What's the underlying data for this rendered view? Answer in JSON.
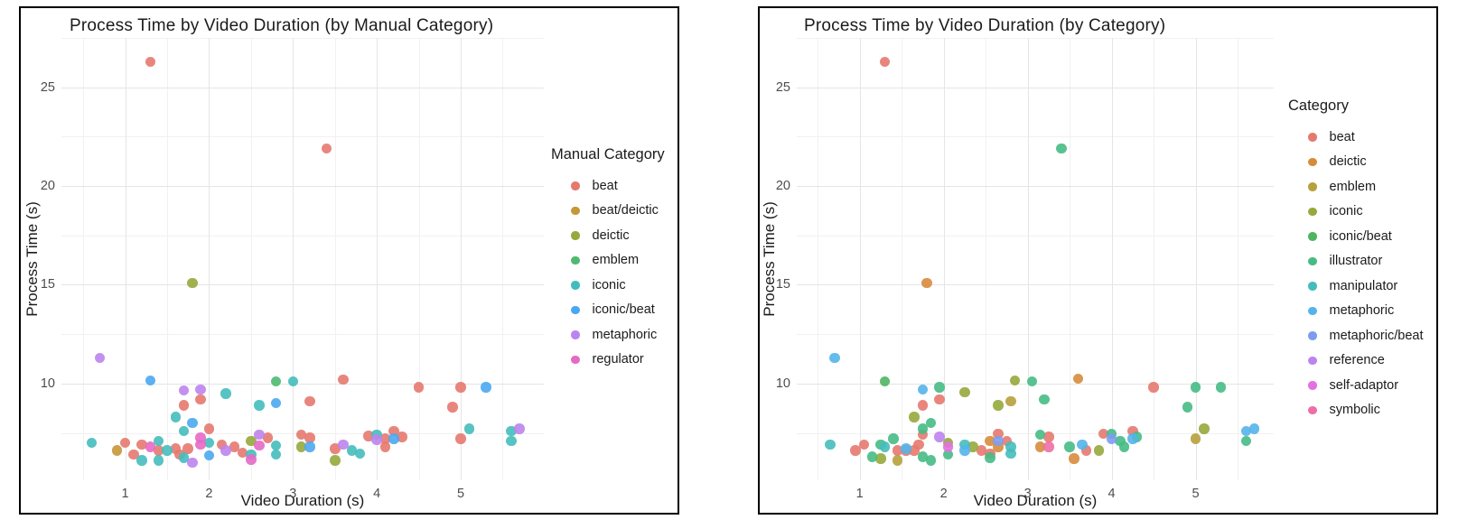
{
  "page": {
    "background": "#ffffff",
    "panel_border_color": "#000000",
    "grid_major_color": "#e5e5e5",
    "grid_minor_color": "#f1f1f1",
    "tick_text_color": "#4d4d4d",
    "text_color": "#1b1b1b"
  },
  "chart_data": [
    {
      "type": "scatter",
      "title": "Process Time by Video Duration (by Manual Category)",
      "xlabel": "Video Duration (s)",
      "ylabel": "Process Time (s)",
      "legend_title": "Manual Category",
      "legend_position": "right",
      "grid": true,
      "xlim": [
        0.24,
        5.99
      ],
      "ylim": [
        5.1,
        27.5
      ],
      "x_ticks": [
        1,
        2,
        3,
        4,
        5
      ],
      "y_ticks": [
        10,
        15,
        20,
        25
      ],
      "x_minor": [
        0.5,
        1.5,
        2.5,
        3.5,
        4.5,
        5.5
      ],
      "y_minor": [
        7.5,
        12.5,
        17.5,
        22.5,
        27.5
      ],
      "categories": [
        {
          "name": "beat",
          "color": "#E5796F"
        },
        {
          "name": "beat/deictic",
          "color": "#C69738"
        },
        {
          "name": "deictic",
          "color": "#96A93C"
        },
        {
          "name": "emblem",
          "color": "#4FBA71"
        },
        {
          "name": "iconic",
          "color": "#45BCBC"
        },
        {
          "name": "iconic/beat",
          "color": "#4BA8F0"
        },
        {
          "name": "metaphoric",
          "color": "#BC84EE"
        },
        {
          "name": "regulator",
          "color": "#E669C6"
        }
      ],
      "points": [
        [
          1.3,
          26.3,
          "beat"
        ],
        [
          3.4,
          21.9,
          "beat"
        ],
        [
          1.0,
          7.0,
          "beat"
        ],
        [
          1.1,
          6.4,
          "beat"
        ],
        [
          1.2,
          6.9,
          "beat"
        ],
        [
          1.4,
          6.6,
          "beat"
        ],
        [
          1.6,
          6.7,
          "beat"
        ],
        [
          1.65,
          6.4,
          "beat"
        ],
        [
          1.7,
          8.9,
          "beat"
        ],
        [
          1.75,
          6.7,
          "beat"
        ],
        [
          1.9,
          9.2,
          "beat"
        ],
        [
          2.0,
          7.7,
          "beat"
        ],
        [
          2.15,
          6.9,
          "beat"
        ],
        [
          2.3,
          6.8,
          "beat"
        ],
        [
          2.4,
          6.5,
          "beat"
        ],
        [
          2.7,
          7.25,
          "beat"
        ],
        [
          3.1,
          7.4,
          "beat"
        ],
        [
          3.2,
          9.1,
          "beat"
        ],
        [
          3.2,
          7.25,
          "beat"
        ],
        [
          3.5,
          6.7,
          "beat"
        ],
        [
          3.6,
          10.2,
          "beat"
        ],
        [
          3.9,
          7.35,
          "beat"
        ],
        [
          4.1,
          7.2,
          "beat"
        ],
        [
          4.1,
          6.8,
          "beat"
        ],
        [
          4.2,
          7.6,
          "beat"
        ],
        [
          4.3,
          7.3,
          "beat"
        ],
        [
          4.5,
          9.8,
          "beat"
        ],
        [
          4.9,
          8.8,
          "beat"
        ],
        [
          5.0,
          9.8,
          "beat"
        ],
        [
          5.0,
          7.2,
          "beat"
        ],
        [
          0.9,
          6.6,
          "beat/deictic"
        ],
        [
          1.8,
          15.1,
          "deictic"
        ],
        [
          2.5,
          7.1,
          "deictic"
        ],
        [
          3.1,
          6.8,
          "deictic"
        ],
        [
          3.5,
          6.1,
          "deictic"
        ],
        [
          2.8,
          10.1,
          "emblem"
        ],
        [
          0.6,
          7.0,
          "iconic"
        ],
        [
          1.2,
          6.1,
          "iconic"
        ],
        [
          1.4,
          7.1,
          "iconic"
        ],
        [
          1.4,
          6.1,
          "iconic"
        ],
        [
          1.5,
          6.6,
          "iconic"
        ],
        [
          1.6,
          8.3,
          "iconic"
        ],
        [
          1.7,
          7.6,
          "iconic"
        ],
        [
          1.7,
          6.25,
          "iconic"
        ],
        [
          2.0,
          7.0,
          "iconic"
        ],
        [
          2.2,
          9.5,
          "iconic"
        ],
        [
          2.5,
          6.4,
          "iconic"
        ],
        [
          2.6,
          8.9,
          "iconic"
        ],
        [
          2.8,
          6.85,
          "iconic"
        ],
        [
          2.8,
          6.4,
          "iconic"
        ],
        [
          3.0,
          10.1,
          "iconic"
        ],
        [
          3.7,
          6.6,
          "iconic"
        ],
        [
          3.8,
          6.45,
          "iconic"
        ],
        [
          4.0,
          7.4,
          "iconic"
        ],
        [
          5.1,
          7.7,
          "iconic"
        ],
        [
          5.6,
          7.6,
          "iconic"
        ],
        [
          5.6,
          7.1,
          "iconic"
        ],
        [
          1.3,
          10.15,
          "iconic/beat"
        ],
        [
          1.8,
          8.0,
          "iconic/beat"
        ],
        [
          2.0,
          6.35,
          "iconic/beat"
        ],
        [
          2.8,
          9.0,
          "iconic/beat"
        ],
        [
          3.2,
          6.8,
          "iconic/beat"
        ],
        [
          4.2,
          7.2,
          "iconic/beat"
        ],
        [
          5.3,
          9.8,
          "iconic/beat"
        ],
        [
          0.7,
          11.3,
          "metaphoric"
        ],
        [
          1.7,
          9.65,
          "metaphoric"
        ],
        [
          1.9,
          9.7,
          "metaphoric"
        ],
        [
          1.8,
          6.0,
          "metaphoric"
        ],
        [
          2.2,
          6.6,
          "metaphoric"
        ],
        [
          2.6,
          7.4,
          "metaphoric"
        ],
        [
          3.6,
          6.9,
          "metaphoric"
        ],
        [
          4.0,
          7.15,
          "metaphoric"
        ],
        [
          5.7,
          7.7,
          "metaphoric"
        ],
        [
          1.3,
          6.8,
          "regulator"
        ],
        [
          1.9,
          7.25,
          "regulator"
        ],
        [
          1.9,
          6.9,
          "regulator"
        ],
        [
          2.5,
          6.15,
          "regulator"
        ],
        [
          2.6,
          6.85,
          "regulator"
        ]
      ]
    },
    {
      "type": "scatter",
      "title": "Process Time by Video Duration (by Category)",
      "xlabel": "Video Duration (s)",
      "ylabel": "Process Time (s)",
      "legend_title": "Category",
      "legend_position": "right",
      "grid": true,
      "xlim": [
        0.25,
        5.93
      ],
      "ylim": [
        5.1,
        27.5
      ],
      "x_ticks": [
        1,
        2,
        3,
        4,
        5
      ],
      "y_ticks": [
        10,
        15,
        20,
        25
      ],
      "x_minor": [
        0.5,
        1.5,
        2.5,
        3.5,
        4.5,
        5.5
      ],
      "y_minor": [
        7.5,
        12.5,
        17.5,
        22.5,
        27.5
      ],
      "categories": [
        {
          "name": "beat",
          "color": "#E5796F"
        },
        {
          "name": "deictic",
          "color": "#D78C3C"
        },
        {
          "name": "emblem",
          "color": "#B6A13B"
        },
        {
          "name": "iconic",
          "color": "#96A93C"
        },
        {
          "name": "iconic/beat",
          "color": "#4FB560"
        },
        {
          "name": "illustrator",
          "color": "#46BB85"
        },
        {
          "name": "manipulator",
          "color": "#45BCBC"
        },
        {
          "name": "metaphoric",
          "color": "#54B4EA"
        },
        {
          "name": "metaphoric/beat",
          "color": "#7C9DEE"
        },
        {
          "name": "reference",
          "color": "#BC84EE"
        },
        {
          "name": "self-adaptor",
          "color": "#E172DF"
        },
        {
          "name": "symbolic",
          "color": "#EC6FA7"
        }
      ],
      "points": [
        [
          1.3,
          26.3,
          "beat"
        ],
        [
          0.95,
          6.6,
          "beat"
        ],
        [
          1.05,
          6.9,
          "beat"
        ],
        [
          1.45,
          6.6,
          "beat"
        ],
        [
          1.55,
          6.6,
          "beat"
        ],
        [
          1.65,
          6.6,
          "beat"
        ],
        [
          1.7,
          6.9,
          "beat"
        ],
        [
          1.75,
          7.4,
          "beat"
        ],
        [
          1.75,
          8.9,
          "beat"
        ],
        [
          1.95,
          9.2,
          "beat"
        ],
        [
          2.45,
          6.6,
          "beat"
        ],
        [
          2.55,
          6.45,
          "beat"
        ],
        [
          2.65,
          7.45,
          "beat"
        ],
        [
          2.75,
          7.1,
          "beat"
        ],
        [
          3.25,
          7.3,
          "beat"
        ],
        [
          3.7,
          6.6,
          "beat"
        ],
        [
          3.9,
          7.45,
          "beat"
        ],
        [
          4.25,
          7.6,
          "beat"
        ],
        [
          4.5,
          9.8,
          "beat"
        ],
        [
          1.8,
          15.1,
          "deictic"
        ],
        [
          2.55,
          7.1,
          "deictic"
        ],
        [
          2.65,
          6.8,
          "deictic"
        ],
        [
          3.15,
          6.8,
          "deictic"
        ],
        [
          3.55,
          6.2,
          "deictic"
        ],
        [
          3.6,
          10.25,
          "deictic"
        ],
        [
          1.45,
          6.1,
          "emblem"
        ],
        [
          2.8,
          9.1,
          "emblem"
        ],
        [
          5.0,
          7.2,
          "emblem"
        ],
        [
          1.25,
          6.2,
          "iconic"
        ],
        [
          1.65,
          8.3,
          "iconic"
        ],
        [
          2.05,
          7.0,
          "iconic"
        ],
        [
          2.25,
          9.55,
          "iconic"
        ],
        [
          2.35,
          6.8,
          "iconic"
        ],
        [
          2.65,
          8.9,
          "iconic"
        ],
        [
          2.85,
          10.15,
          "iconic"
        ],
        [
          3.85,
          6.6,
          "iconic"
        ],
        [
          5.1,
          7.7,
          "iconic"
        ],
        [
          1.3,
          10.1,
          "iconic/beat"
        ],
        [
          1.15,
          6.3,
          "illustrator"
        ],
        [
          1.25,
          6.9,
          "illustrator"
        ],
        [
          1.4,
          7.2,
          "illustrator"
        ],
        [
          1.75,
          6.3,
          "illustrator"
        ],
        [
          1.75,
          7.7,
          "illustrator"
        ],
        [
          1.85,
          6.1,
          "illustrator"
        ],
        [
          1.85,
          8.0,
          "illustrator"
        ],
        [
          1.95,
          9.8,
          "illustrator"
        ],
        [
          2.05,
          6.4,
          "illustrator"
        ],
        [
          2.55,
          6.25,
          "illustrator"
        ],
        [
          3.05,
          10.1,
          "illustrator"
        ],
        [
          3.15,
          7.4,
          "illustrator"
        ],
        [
          3.2,
          9.2,
          "illustrator"
        ],
        [
          3.4,
          21.9,
          "illustrator"
        ],
        [
          3.5,
          6.8,
          "illustrator"
        ],
        [
          4.0,
          7.45,
          "illustrator"
        ],
        [
          4.1,
          7.1,
          "illustrator"
        ],
        [
          4.15,
          6.8,
          "illustrator"
        ],
        [
          4.3,
          7.3,
          "illustrator"
        ],
        [
          4.9,
          8.8,
          "illustrator"
        ],
        [
          5.0,
          9.8,
          "illustrator"
        ],
        [
          5.3,
          9.8,
          "illustrator"
        ],
        [
          5.6,
          7.1,
          "illustrator"
        ],
        [
          0.65,
          6.9,
          "manipulator"
        ],
        [
          1.3,
          6.8,
          "manipulator"
        ],
        [
          2.25,
          6.9,
          "manipulator"
        ],
        [
          2.8,
          6.8,
          "manipulator"
        ],
        [
          2.8,
          6.45,
          "manipulator"
        ],
        [
          0.7,
          11.3,
          "metaphoric"
        ],
        [
          1.55,
          6.7,
          "metaphoric"
        ],
        [
          1.75,
          9.7,
          "metaphoric"
        ],
        [
          2.25,
          6.6,
          "metaphoric"
        ],
        [
          3.65,
          6.9,
          "metaphoric"
        ],
        [
          4.25,
          7.2,
          "metaphoric"
        ],
        [
          5.6,
          7.6,
          "metaphoric"
        ],
        [
          5.7,
          7.7,
          "metaphoric"
        ],
        [
          2.65,
          7.1,
          "metaphoric/beat"
        ],
        [
          4.0,
          7.2,
          "metaphoric/beat"
        ],
        [
          1.95,
          7.3,
          "reference"
        ],
        [
          2.05,
          6.8,
          "self-adaptor"
        ],
        [
          3.25,
          6.8,
          "symbolic"
        ]
      ]
    }
  ]
}
